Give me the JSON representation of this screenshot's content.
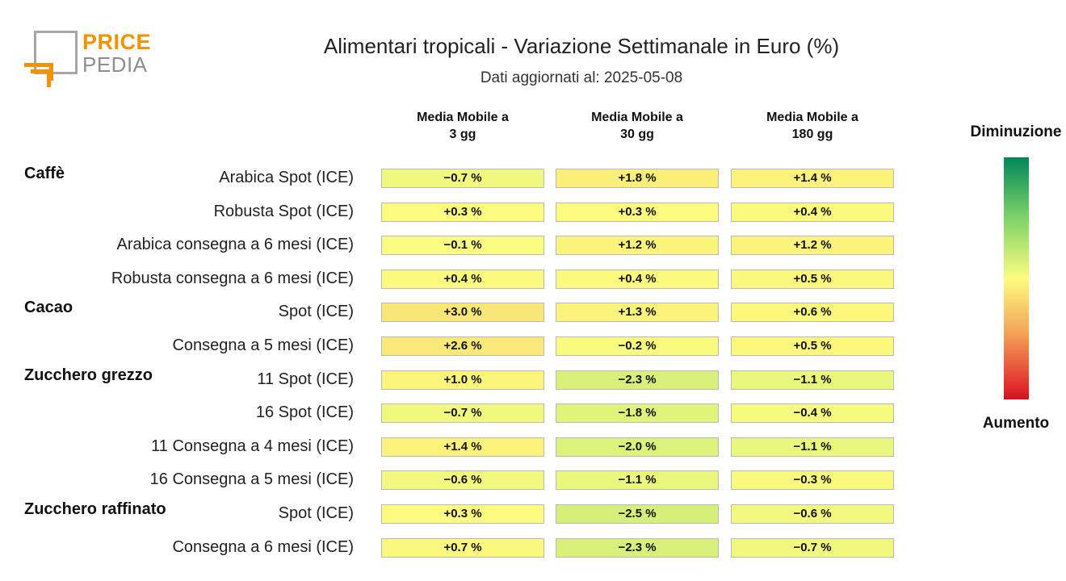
{
  "logo": {
    "brand_top": "PRICE",
    "brand_bottom": "PEDIA",
    "accent": "#f39200"
  },
  "title": "Alimentari tropicali - Variazione Settimanale in Euro (%)",
  "subtitle": "Dati aggiornati al: 2025-05-08",
  "legend": {
    "top": "Diminuzione",
    "bottom": "Aumento"
  },
  "chart_data": {
    "type": "heatmap",
    "title": "Alimentari tropicali - Variazione Settimanale in Euro (%)",
    "columns": [
      "Media Mobile a\n3 gg",
      "Media Mobile a\n30 gg",
      "Media Mobile a\n180 gg"
    ],
    "groups": [
      {
        "name": "Caffè",
        "rows": [
          {
            "label": "Arabica Spot (ICE)",
            "values": [
              -0.7,
              1.8,
              1.4
            ]
          },
          {
            "label": "Robusta Spot (ICE)",
            "values": [
              0.3,
              0.3,
              0.4
            ]
          },
          {
            "label": "Arabica consegna a 6 mesi (ICE)",
            "values": [
              -0.1,
              1.2,
              1.2
            ]
          },
          {
            "label": "Robusta consegna a 6 mesi (ICE)",
            "values": [
              0.4,
              0.4,
              0.5
            ]
          }
        ]
      },
      {
        "name": "Cacao",
        "rows": [
          {
            "label": "Spot (ICE)",
            "values": [
              3.0,
              1.3,
              0.6
            ]
          },
          {
            "label": "Consegna a 5 mesi (ICE)",
            "values": [
              2.6,
              -0.2,
              0.5
            ]
          }
        ]
      },
      {
        "name": "Zucchero grezzo",
        "rows": [
          {
            "label": "11 Spot (ICE)",
            "values": [
              1.0,
              -2.3,
              -1.1
            ]
          },
          {
            "label": "16 Spot (ICE)",
            "values": [
              -0.7,
              -1.8,
              -0.4
            ]
          },
          {
            "label": "11 Consegna a 4 mesi (ICE)",
            "values": [
              1.4,
              -2.0,
              -1.1
            ]
          },
          {
            "label": "16 Consegna a 5 mesi (ICE)",
            "values": [
              -0.6,
              -1.1,
              -0.3
            ]
          }
        ]
      },
      {
        "name": "Zucchero raffinato",
        "rows": [
          {
            "label": "Spot (ICE)",
            "values": [
              0.3,
              -2.5,
              -0.6
            ]
          },
          {
            "label": "Consegna a 6 mesi (ICE)",
            "values": [
              0.7,
              -2.3,
              -0.7
            ]
          }
        ]
      }
    ],
    "value_suffix": " %",
    "color_scale": {
      "negative": "#00875a",
      "neutral": "#fcfc80",
      "positive": "#d50f1f"
    }
  }
}
